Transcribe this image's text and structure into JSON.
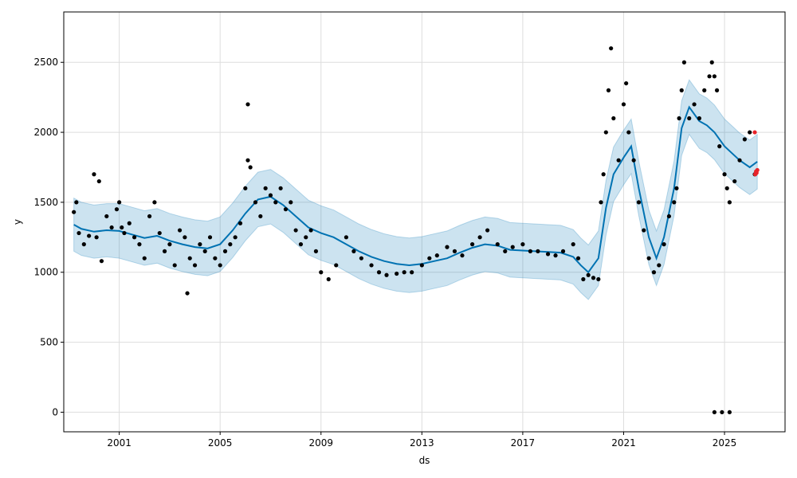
{
  "chart_data": {
    "type": "line",
    "title": "",
    "xlabel": "ds",
    "ylabel": "y",
    "xlim": [
      1998.8,
      2027.4
    ],
    "ylim": [
      -140,
      2860
    ],
    "grid": true,
    "x_ticks": [
      2001,
      2005,
      2009,
      2013,
      2017,
      2021,
      2025
    ],
    "x_tick_labels": [
      "2001",
      "2005",
      "2009",
      "2013",
      "2017",
      "2021",
      "2025"
    ],
    "y_ticks": [
      0,
      500,
      1000,
      1500,
      2000,
      2500
    ],
    "y_tick_labels": [
      "0",
      "500",
      "1000",
      "1500",
      "2000",
      "2500"
    ],
    "colors": {
      "forecast_line": "#0072B2",
      "uncertainty_band": "#0072B2",
      "observed_points": "#000000",
      "future_points": "#e8232a",
      "grid": "#dddddd"
    },
    "series": [
      {
        "role": "forecast",
        "x": [
          1999.2,
          1999.5,
          2000.0,
          2000.5,
          2001.0,
          2001.5,
          2002.0,
          2002.5,
          2003.0,
          2003.5,
          2004.0,
          2004.5,
          2005.0,
          2005.5,
          2006.0,
          2006.5,
          2007.0,
          2007.5,
          2008.0,
          2008.5,
          2009.0,
          2009.5,
          2010.0,
          2010.5,
          2011.0,
          2011.5,
          2012.0,
          2012.5,
          2013.0,
          2013.5,
          2014.0,
          2014.5,
          2015.0,
          2015.5,
          2016.0,
          2016.5,
          2017.0,
          2017.5,
          2018.0,
          2018.5,
          2019.0,
          2019.3,
          2019.6,
          2020.0,
          2020.3,
          2020.6,
          2021.0,
          2021.3,
          2021.6,
          2022.0,
          2022.3,
          2022.6,
          2023.0,
          2023.3,
          2023.6,
          2024.0,
          2024.3,
          2024.6,
          2025.0,
          2025.3,
          2025.6,
          2026.0,
          2026.3
        ],
        "y": [
          1340,
          1310,
          1290,
          1300,
          1295,
          1270,
          1245,
          1260,
          1225,
          1200,
          1180,
          1170,
          1200,
          1300,
          1420,
          1520,
          1540,
          1480,
          1400,
          1320,
          1280,
          1250,
          1200,
          1150,
          1110,
          1080,
          1060,
          1050,
          1060,
          1080,
          1100,
          1140,
          1175,
          1200,
          1190,
          1160,
          1155,
          1150,
          1145,
          1140,
          1110,
          1050,
          1000,
          1100,
          1460,
          1700,
          1820,
          1900,
          1600,
          1250,
          1100,
          1250,
          1600,
          2030,
          2180,
          2080,
          2050,
          2000,
          1900,
          1850,
          1800,
          1750,
          1790
        ],
        "lower": [
          1150,
          1120,
          1100,
          1110,
          1100,
          1075,
          1050,
          1065,
          1030,
          1005,
          985,
          975,
          1005,
          1105,
          1225,
          1325,
          1345,
          1285,
          1205,
          1125,
          1085,
          1055,
          1005,
          955,
          915,
          885,
          865,
          855,
          865,
          885,
          905,
          945,
          980,
          1005,
          995,
          965,
          960,
          955,
          950,
          945,
          915,
          855,
          805,
          905,
          1265,
          1505,
          1625,
          1705,
          1405,
          1055,
          905,
          1055,
          1405,
          1835,
          1985,
          1885,
          1855,
          1805,
          1705,
          1655,
          1605,
          1555,
          1595
        ],
        "upper": [
          1530,
          1500,
          1480,
          1490,
          1490,
          1465,
          1440,
          1455,
          1420,
          1395,
          1375,
          1365,
          1395,
          1495,
          1615,
          1715,
          1735,
          1675,
          1595,
          1515,
          1475,
          1445,
          1395,
          1345,
          1305,
          1275,
          1255,
          1245,
          1255,
          1275,
          1295,
          1335,
          1370,
          1395,
          1385,
          1355,
          1350,
          1345,
          1340,
          1335,
          1305,
          1245,
          1195,
          1295,
          1655,
          1895,
          2015,
          2095,
          1795,
          1445,
          1295,
          1445,
          1795,
          2225,
          2375,
          2275,
          2245,
          2195,
          2095,
          2045,
          1995,
          1945,
          1985
        ]
      },
      {
        "role": "observed",
        "x": [
          1999.2,
          1999.3,
          1999.4,
          1999.6,
          1999.8,
          2000.0,
          2000.1,
          2000.3,
          2000.5,
          2000.7,
          2000.9,
          2001.0,
          2001.2,
          2001.4,
          2001.6,
          2001.8,
          2002.0,
          2002.2,
          2002.4,
          2002.6,
          2002.8,
          2003.0,
          2003.2,
          2003.4,
          2003.6,
          2003.8,
          2004.0,
          2004.2,
          2004.4,
          2004.6,
          2004.8,
          2005.0,
          2005.2,
          2005.4,
          2005.6,
          2005.8,
          2006.0,
          2006.1,
          2006.2,
          2006.4,
          2006.6,
          2006.8,
          2007.0,
          2007.2,
          2007.4,
          2007.6,
          2007.8,
          2008.0,
          2008.2,
          2008.4,
          2008.6,
          2008.8,
          2009.0,
          2009.3,
          2009.6,
          2010.0,
          2010.3,
          2010.6,
          2011.0,
          2011.3,
          2011.6,
          2012.0,
          2012.3,
          2012.6,
          2013.0,
          2013.3,
          2013.6,
          2014.0,
          2014.3,
          2014.6,
          2015.0,
          2015.3,
          2015.6,
          2016.0,
          2016.3,
          2016.6,
          2017.0,
          2017.3,
          2017.6,
          2018.0,
          2018.3,
          2018.6,
          2019.0,
          2019.2,
          2019.4,
          2019.6,
          2019.8,
          2020.0,
          2020.1,
          2020.2,
          2020.3,
          2020.4,
          2020.5,
          2020.6,
          2020.8,
          2021.0,
          2021.1,
          2021.2,
          2021.4,
          2021.6,
          2021.8,
          2022.0,
          2022.2,
          2022.4,
          2022.6,
          2022.8,
          2023.0,
          2023.1,
          2023.2,
          2023.3,
          2023.4,
          2023.6,
          2023.8,
          2024.0,
          2024.2,
          2024.4,
          2024.5,
          2024.6,
          2024.7,
          2024.8,
          2025.0,
          2025.1,
          2025.2,
          2025.4,
          2025.6,
          2025.8,
          2026.0,
          2026.2,
          2024.6,
          2024.9,
          2025.2,
          2000.2,
          2001.1,
          2003.7,
          2006.1
        ],
        "y": [
          1430,
          1500,
          1280,
          1200,
          1260,
          1700,
          1250,
          1080,
          1400,
          1320,
          1450,
          1500,
          1280,
          1350,
          1250,
          1200,
          1100,
          1400,
          1500,
          1280,
          1150,
          1200,
          1050,
          1300,
          1250,
          1100,
          1050,
          1200,
          1150,
          1250,
          1100,
          1050,
          1150,
          1200,
          1250,
          1350,
          1600,
          1800,
          1750,
          1500,
          1400,
          1600,
          1550,
          1500,
          1600,
          1450,
          1500,
          1300,
          1200,
          1250,
          1300,
          1150,
          1000,
          950,
          1050,
          1250,
          1150,
          1100,
          1050,
          1000,
          980,
          990,
          1000,
          1000,
          1050,
          1100,
          1120,
          1180,
          1150,
          1120,
          1200,
          1250,
          1300,
          1200,
          1150,
          1180,
          1200,
          1150,
          1150,
          1130,
          1120,
          1150,
          1200,
          1100,
          950,
          980,
          960,
          950,
          1500,
          1700,
          2000,
          2300,
          2600,
          2100,
          1800,
          2200,
          2350,
          2000,
          1800,
          1500,
          1300,
          1100,
          1000,
          1050,
          1200,
          1400,
          1500,
          1600,
          2100,
          2300,
          2500,
          2100,
          2200,
          2100,
          2300,
          2400,
          2500,
          2400,
          2300,
          1900,
          1700,
          1600,
          1500,
          1650,
          1800,
          1950,
          2000,
          1700,
          0,
          0,
          0,
          1650,
          1320,
          850,
          2200
        ],
        "future_x": [
          2026.2,
          2026.22,
          2026.25,
          2026.27,
          2026.3
        ],
        "future_y": [
          2000,
          1700,
          1720,
          1710,
          1730
        ]
      }
    ]
  }
}
